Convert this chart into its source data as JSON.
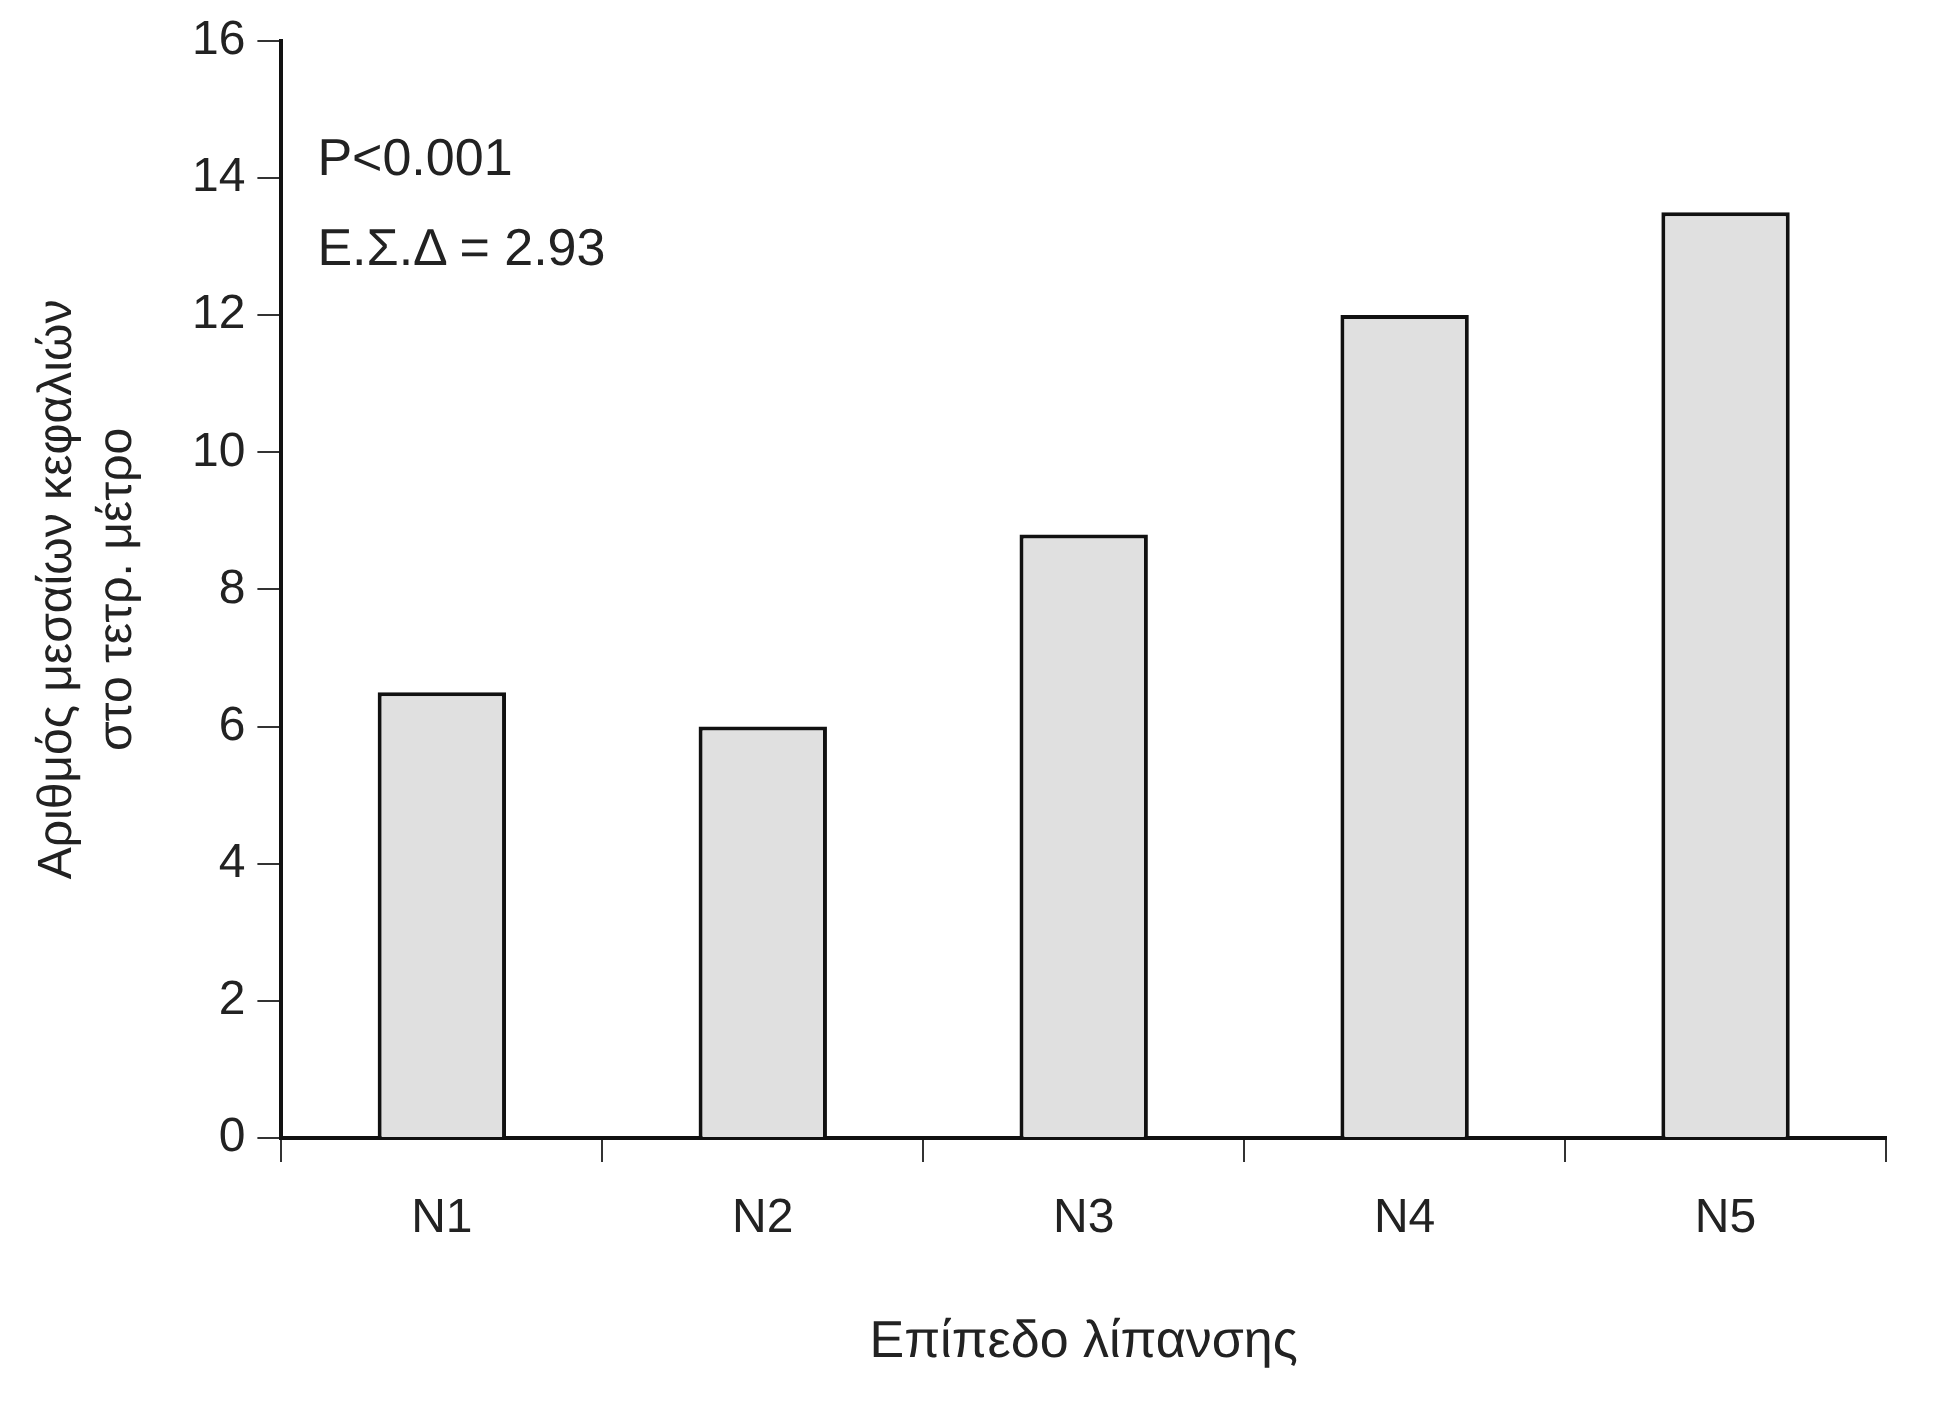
{
  "chart_data": {
    "type": "bar",
    "categories": [
      "N1",
      "N2",
      "N3",
      "N4",
      "N5"
    ],
    "values": [
      6.5,
      6.0,
      8.8,
      12.0,
      13.5
    ],
    "color": "#e0e0e0",
    "xlabel": "Επίπεδο λίπανσης",
    "ylabel": "Αριθμός μεσαίων κεφαλιών\nστο τετρ. μέτρο",
    "ylim": [
      0,
      16
    ],
    "yticks": [
      0,
      2,
      4,
      6,
      8,
      10,
      12,
      14,
      16
    ],
    "annotations": [
      "P<0.001",
      "Ε.Σ.Δ = 2.93"
    ],
    "grid": false,
    "legend": false
  }
}
